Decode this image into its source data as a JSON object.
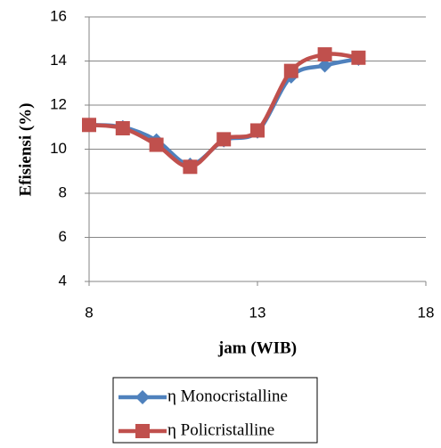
{
  "chart_data": {
    "type": "line",
    "x_label": "jam (WIB)",
    "y_label": "Efisiensi (%)",
    "x": [
      8,
      9,
      10,
      11,
      12,
      13,
      14,
      15,
      16
    ],
    "series": [
      {
        "name": "η Monocristalline",
        "color": "#4f81bd",
        "marker": "diamond",
        "values": [
          11.1,
          11.0,
          10.4,
          9.3,
          10.4,
          10.8,
          13.3,
          13.8,
          14.1
        ]
      },
      {
        "name": "η Policristalline",
        "color": "#c0504d",
        "marker": "square",
        "values": [
          11.1,
          10.95,
          10.2,
          9.2,
          10.45,
          10.85,
          13.55,
          14.3,
          14.15
        ]
      }
    ],
    "xlim": [
      8,
      18
    ],
    "xticks": [
      8,
      13,
      18
    ],
    "ylim": [
      4,
      16
    ],
    "yticks": [
      4,
      6,
      8,
      10,
      12,
      14,
      16
    ],
    "grid": true,
    "smooth": true,
    "legend": "bottom"
  }
}
